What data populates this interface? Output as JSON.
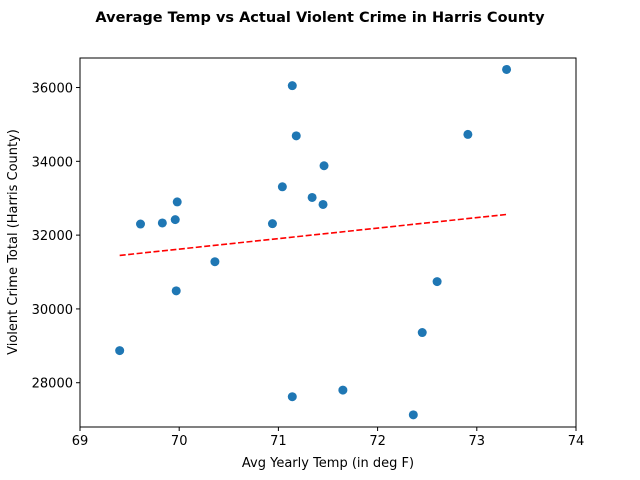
{
  "chart_data": {
    "type": "scatter",
    "title": "Average Temp vs Actual Violent Crime in Harris County",
    "xlabel": "Avg Yearly Temp (in deg F)",
    "ylabel": "Violent Crime Total (Harris County)",
    "xlim": [
      69,
      74
    ],
    "ylim": [
      26800,
      36800
    ],
    "xticks": [
      69,
      70,
      71,
      72,
      73,
      74
    ],
    "yticks": [
      28000,
      30000,
      32000,
      34000,
      36000
    ],
    "grid": false,
    "colors": {
      "points": "#1f77b4",
      "trendline": "#ff0000"
    },
    "points": [
      {
        "x": 69.4,
        "y": 28870
      },
      {
        "x": 69.61,
        "y": 32300
      },
      {
        "x": 69.83,
        "y": 32330
      },
      {
        "x": 69.96,
        "y": 32420
      },
      {
        "x": 69.97,
        "y": 30490
      },
      {
        "x": 69.98,
        "y": 32900
      },
      {
        "x": 70.36,
        "y": 31280
      },
      {
        "x": 70.94,
        "y": 32310
      },
      {
        "x": 71.04,
        "y": 33310
      },
      {
        "x": 71.14,
        "y": 36050
      },
      {
        "x": 71.14,
        "y": 27620
      },
      {
        "x": 71.18,
        "y": 34690
      },
      {
        "x": 71.34,
        "y": 33020
      },
      {
        "x": 71.45,
        "y": 32830
      },
      {
        "x": 71.46,
        "y": 33880
      },
      {
        "x": 71.65,
        "y": 27800
      },
      {
        "x": 72.36,
        "y": 27130
      },
      {
        "x": 72.45,
        "y": 29360
      },
      {
        "x": 72.6,
        "y": 30740
      },
      {
        "x": 72.91,
        "y": 34730
      },
      {
        "x": 73.3,
        "y": 36490
      }
    ],
    "trendline": {
      "style": "dashed",
      "start": {
        "x": 69.4,
        "y": 31450
      },
      "end": {
        "x": 73.3,
        "y": 32560
      }
    }
  }
}
